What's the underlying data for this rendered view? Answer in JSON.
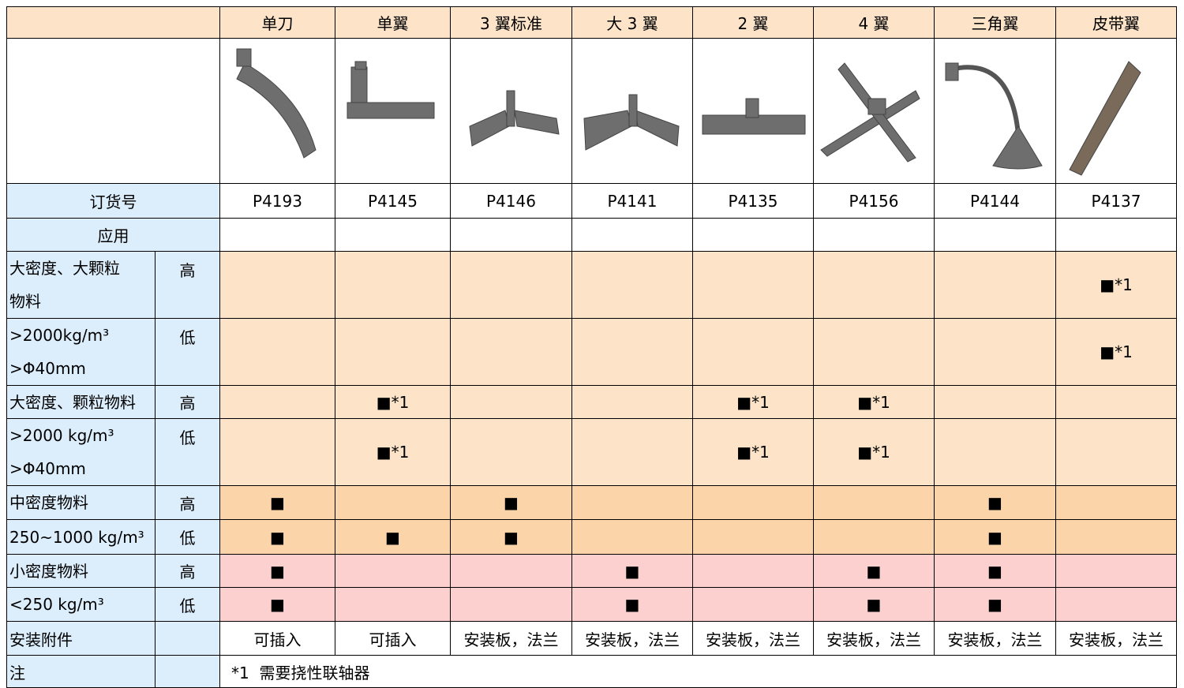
{
  "header": {
    "columns": [
      "单刀",
      "单翼",
      "3 翼标准",
      "大 3 翼",
      "2 翼",
      "4 翼",
      "三角翼",
      "皮带翼"
    ]
  },
  "order": {
    "label": "订货号",
    "values": [
      "P4193",
      "P4145",
      "P4146",
      "P4141",
      "P4135",
      "P4156",
      "P4144",
      "P4137"
    ]
  },
  "application": {
    "label": "应用"
  },
  "rows": [
    {
      "label": [
        "大密度、大颗粒",
        "物料"
      ],
      "level": "高",
      "fill": "#fde4c8",
      "cells": [
        null,
        null,
        null,
        null,
        null,
        null,
        null,
        "■*1"
      ]
    },
    {
      "label": [
        ">2000kg/m³",
        ">Φ40mm"
      ],
      "level": "低",
      "fill": "#fde4c8",
      "cells": [
        null,
        null,
        null,
        null,
        null,
        null,
        null,
        "■*1"
      ]
    },
    {
      "label": [
        "大密度、颗粒物料"
      ],
      "level": "高",
      "fill": "#fde4c8",
      "cells": [
        null,
        "■*1",
        null,
        null,
        "■*1",
        "■*1",
        null,
        null
      ]
    },
    {
      "label": [
        ">2000 kg/m³",
        ">Φ40mm"
      ],
      "level": "低",
      "fill": "#fde4c8",
      "cells": [
        null,
        "■*1",
        null,
        null,
        "■*1",
        "■*1",
        null,
        null
      ]
    },
    {
      "label": [
        "中密度物料"
      ],
      "level": "高",
      "fill": "#fbd4aa",
      "cells": [
        "■",
        null,
        "■",
        null,
        null,
        null,
        "■",
        null
      ]
    },
    {
      "label": [
        "250~1000 kg/m³"
      ],
      "level": "低",
      "fill": "#fbd4aa",
      "cells": [
        "■",
        "■",
        "■",
        null,
        null,
        null,
        "■",
        null
      ]
    },
    {
      "label": [
        "小密度物料"
      ],
      "level": "高",
      "fill": "#fdd0d0",
      "cells": [
        "■",
        null,
        null,
        "■",
        null,
        "■",
        "■",
        null
      ]
    },
    {
      "label": [
        "<250 kg/m³"
      ],
      "level": "低",
      "fill": "#fdd0d0",
      "cells": [
        "■",
        null,
        null,
        "■",
        null,
        "■",
        "■",
        null
      ]
    }
  ],
  "mounting": {
    "label": "安装附件",
    "values": [
      "可插入",
      "可插入",
      "安装板，法兰",
      "安装板，法兰",
      "安装板，法兰",
      "安装板，法兰",
      "安装板，法兰",
      "安装板，法兰"
    ]
  },
  "note": {
    "label": "注",
    "text": "*1  需要挠性联轴器"
  }
}
